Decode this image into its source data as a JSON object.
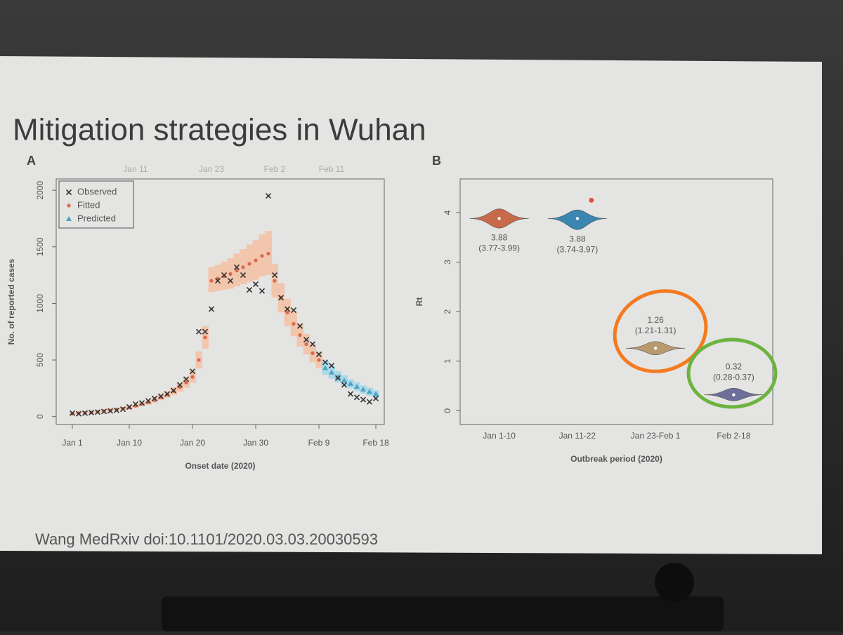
{
  "title": "Mitigation strategies in Wuhan",
  "citation": "Wang MedRxiv doi:10.1101/2020.03.03.20030593",
  "chart_data": [
    {
      "type": "scatter",
      "panel": "A",
      "ylabel": "No. of reported cases",
      "xlabel": "Onset date (2020)",
      "x": [
        "Jan 1",
        "Jan 2",
        "Jan 3",
        "Jan 4",
        "Jan 5",
        "Jan 6",
        "Jan 7",
        "Jan 8",
        "Jan 9",
        "Jan 10",
        "Jan 11",
        "Jan 12",
        "Jan 13",
        "Jan 14",
        "Jan 15",
        "Jan 16",
        "Jan 17",
        "Jan 18",
        "Jan 19",
        "Jan 20",
        "Jan 21",
        "Jan 22",
        "Jan 23",
        "Jan 24",
        "Jan 25",
        "Jan 26",
        "Jan 27",
        "Jan 28",
        "Jan 29",
        "Jan 30",
        "Jan 31",
        "Feb 1",
        "Feb 2",
        "Feb 3",
        "Feb 4",
        "Feb 5",
        "Feb 6",
        "Feb 7",
        "Feb 8",
        "Feb 9",
        "Feb 10",
        "Feb 11",
        "Feb 12",
        "Feb 13",
        "Feb 14",
        "Feb 15",
        "Feb 16",
        "Feb 17",
        "Feb 18"
      ],
      "xticks": [
        "Jan 1",
        "Jan 10",
        "Jan 20",
        "Jan 30",
        "Feb 9",
        "Feb 18"
      ],
      "top_labels": [
        "Jan 11",
        "Jan 23",
        "Feb 2",
        "Feb 11"
      ],
      "ylim": [
        -70,
        2100
      ],
      "yticks": [
        0,
        500,
        1000,
        1500,
        2000
      ],
      "legend": "top-left",
      "series": [
        {
          "name": "Observed",
          "marker": "x",
          "color": "#333333",
          "values": [
            30,
            25,
            30,
            35,
            40,
            45,
            50,
            55,
            65,
            85,
            110,
            120,
            140,
            160,
            180,
            200,
            230,
            280,
            330,
            400,
            750,
            750,
            950,
            1200,
            1250,
            1200,
            1320,
            1250,
            1120,
            1170,
            1110,
            1950,
            1250,
            1050,
            950,
            940,
            800,
            680,
            640,
            550,
            480,
            450,
            340,
            280,
            200,
            170,
            150,
            130,
            160
          ]
        },
        {
          "name": "Fitted",
          "marker": "dot",
          "color": "#d9694f",
          "band_color": "#f2c6ad",
          "values": [
            25,
            30,
            33,
            37,
            42,
            48,
            55,
            62,
            70,
            80,
            95,
            110,
            125,
            145,
            170,
            195,
            225,
            260,
            300,
            350,
            500,
            700,
            1200,
            1220,
            1240,
            1260,
            1290,
            1320,
            1350,
            1380,
            1420,
            1440,
            1200,
            1050,
            920,
            820,
            720,
            640,
            560,
            500,
            null,
            null,
            null,
            null,
            null,
            null,
            null,
            null,
            null
          ],
          "lower": [
            20,
            25,
            28,
            31,
            36,
            41,
            47,
            53,
            60,
            68,
            81,
            94,
            106,
            123,
            145,
            166,
            191,
            221,
            255,
            298,
            425,
            600,
            1100,
            1110,
            1120,
            1130,
            1150,
            1170,
            1190,
            1210,
            1240,
            1250,
            1050,
            920,
            800,
            710,
            620,
            550,
            480,
            430,
            null,
            null,
            null,
            null,
            null,
            null,
            null,
            null,
            null
          ],
          "upper": [
            30,
            35,
            38,
            43,
            48,
            55,
            63,
            71,
            80,
            92,
            109,
            126,
            144,
            167,
            195,
            224,
            259,
            299,
            345,
            402,
            575,
            800,
            1320,
            1340,
            1370,
            1400,
            1440,
            1480,
            1520,
            1560,
            1610,
            1640,
            1350,
            1180,
            1040,
            930,
            820,
            730,
            640,
            570,
            null,
            null,
            null,
            null,
            null,
            null,
            null,
            null,
            null
          ]
        },
        {
          "name": "Predicted",
          "marker": "triangle",
          "color": "#4fa3c0",
          "band_color": "#a9d9e8",
          "values": [
            null,
            null,
            null,
            null,
            null,
            null,
            null,
            null,
            null,
            null,
            null,
            null,
            null,
            null,
            null,
            null,
            null,
            null,
            null,
            null,
            null,
            null,
            null,
            null,
            null,
            null,
            null,
            null,
            null,
            null,
            null,
            null,
            null,
            null,
            null,
            null,
            null,
            null,
            null,
            null,
            430,
            390,
            350,
            320,
            290,
            265,
            240,
            220,
            200
          ],
          "lower": [
            null,
            null,
            null,
            null,
            null,
            null,
            null,
            null,
            null,
            null,
            null,
            null,
            null,
            null,
            null,
            null,
            null,
            null,
            null,
            null,
            null,
            null,
            null,
            null,
            null,
            null,
            null,
            null,
            null,
            null,
            null,
            null,
            null,
            null,
            null,
            null,
            null,
            null,
            null,
            null,
            370,
            335,
            300,
            275,
            250,
            225,
            205,
            185,
            170
          ],
          "upper": [
            null,
            null,
            null,
            null,
            null,
            null,
            null,
            null,
            null,
            null,
            null,
            null,
            null,
            null,
            null,
            null,
            null,
            null,
            null,
            null,
            null,
            null,
            null,
            null,
            null,
            null,
            null,
            null,
            null,
            null,
            null,
            null,
            null,
            null,
            null,
            null,
            null,
            null,
            null,
            null,
            490,
            445,
            400,
            365,
            330,
            305,
            275,
            255,
            230
          ]
        }
      ]
    },
    {
      "type": "violin",
      "panel": "B",
      "ylabel": "Rt",
      "xlabel": "Outbreak period (2020)",
      "categories": [
        "Jan 1-10",
        "Jan 11-22",
        "Jan 23-Feb 1",
        "Feb 2-18"
      ],
      "values": [
        3.88,
        3.88,
        1.26,
        0.32
      ],
      "ci": [
        [
          3.77,
          3.99
        ],
        [
          3.74,
          3.97
        ],
        [
          1.21,
          1.31
        ],
        [
          0.28,
          0.37
        ]
      ],
      "ci_labels": [
        "(3.77-3.99)",
        "(3.74-3.97)",
        "(1.21-1.31)",
        "(0.28-0.37)"
      ],
      "colors": [
        "#c8694a",
        "#3a86b0",
        "#b89a6e",
        "#6b6f9a"
      ],
      "outliers": [
        null,
        4.25,
        null,
        null
      ],
      "outlier_color": "#e0504a",
      "ylim": [
        -0.28,
        4.68
      ],
      "yticks": [
        0,
        1,
        2,
        3,
        4
      ]
    }
  ]
}
